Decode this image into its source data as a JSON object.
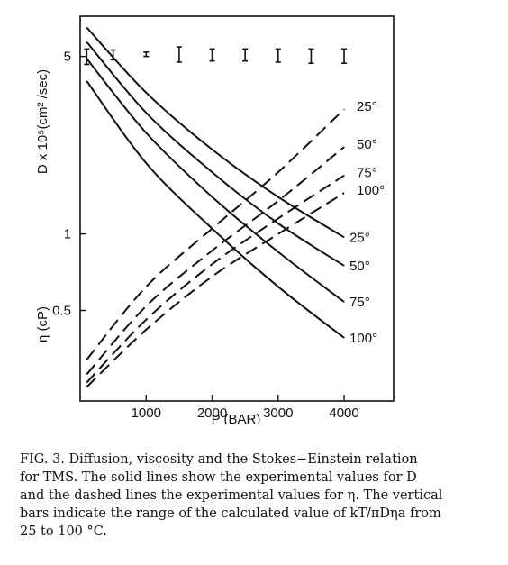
{
  "chart_data": {
    "type": "line",
    "xlabel": "P (BAR)",
    "ylabel_top": "D x 10⁵(cm² /sec)",
    "ylabel_bottom": "η (cP)",
    "xlim": [
      0,
      4750
    ],
    "ylim": [
      0.22,
      7.2
    ],
    "yscale": "log",
    "xticks": [
      1000,
      2000,
      3000,
      4000
    ],
    "xtick_labels": [
      "1000",
      "2000",
      "3000",
      "4000"
    ],
    "yticks": [
      5,
      1,
      0.5
    ],
    "ytick_labels": [
      "5",
      "1",
      "0.5"
    ],
    "grid": false,
    "solid_series": [
      {
        "name": "25°",
        "x": [
          100,
          1000,
          2000,
          3000,
          4000
        ],
        "y": [
          6.5,
          3.6,
          2.15,
          1.4,
          0.97
        ]
      },
      {
        "name": "50°",
        "x": [
          100,
          1000,
          2000,
          3000,
          4000
        ],
        "y": [
          5.7,
          3.0,
          1.75,
          1.1,
          0.75
        ]
      },
      {
        "name": "75°",
        "x": [
          100,
          1000,
          2000,
          3000,
          4000
        ],
        "y": [
          4.9,
          2.5,
          1.4,
          0.85,
          0.54
        ]
      },
      {
        "name": "100°",
        "x": [
          100,
          1000,
          2000,
          3000,
          4000
        ],
        "y": [
          4.0,
          1.9,
          1.05,
          0.62,
          0.39
        ]
      }
    ],
    "dashed_series": [
      {
        "name": "25°",
        "x": [
          100,
          1000,
          2000,
          3000,
          4000
        ],
        "y": [
          0.32,
          0.62,
          1.05,
          1.75,
          3.1
        ]
      },
      {
        "name": "50°",
        "x": [
          100,
          1000,
          2000,
          3000,
          4000
        ],
        "y": [
          0.28,
          0.52,
          0.86,
          1.35,
          2.2
        ]
      },
      {
        "name": "75°",
        "x": [
          100,
          1000,
          2000,
          3000,
          4000
        ],
        "y": [
          0.26,
          0.46,
          0.76,
          1.15,
          1.7
        ]
      },
      {
        "name": "100°",
        "x": [
          100,
          1000,
          2000,
          3000,
          4000
        ],
        "y": [
          0.25,
          0.42,
          0.68,
          1.0,
          1.45
        ]
      }
    ],
    "error_bars": {
      "x": [
        100,
        500,
        1000,
        1500,
        2000,
        2500,
        3000,
        3500,
        4000
      ],
      "lo": [
        4.65,
        4.85,
        5.0,
        4.75,
        4.8,
        4.8,
        4.75,
        4.7,
        4.7
      ],
      "hi": [
        5.35,
        5.3,
        5.2,
        5.45,
        5.35,
        5.35,
        5.35,
        5.35,
        5.35
      ]
    }
  },
  "caption": {
    "line1": "FIG. 3.  Diffusion, viscosity and the Stokes−Einstein relation",
    "line2": "for TMS.  The solid lines show the experimental values for D",
    "line3": "and the dashed lines the experimental values for η.  The vertical",
    "line4": "bars indicate the range of the calculated value of kT/πDηa from",
    "line5": "25 to 100 °C."
  }
}
